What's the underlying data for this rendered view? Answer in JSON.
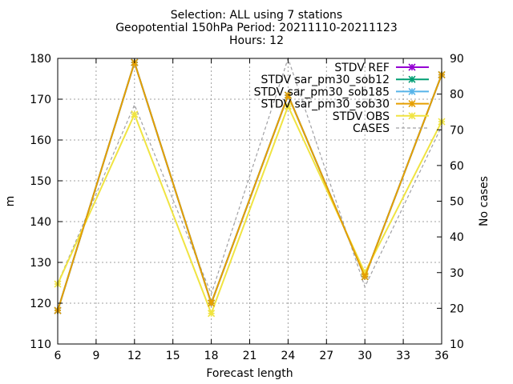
{
  "chart_data": {
    "type": "line",
    "title": [
      "Selection: ALL using     7 stations",
      "Geopotential 150hPa   Period: 20211110-20211123",
      "Hours: 12"
    ],
    "xlabel": "Forecast length",
    "ylabel": "m",
    "y2label": "No cases",
    "x": [
      6,
      12,
      18,
      24,
      30,
      36
    ],
    "xticks": [
      6,
      9,
      12,
      15,
      18,
      21,
      24,
      27,
      30,
      33,
      36
    ],
    "xlim": [
      6,
      36
    ],
    "ylim": [
      110,
      180
    ],
    "yticks": [
      110,
      120,
      130,
      140,
      150,
      160,
      170,
      180
    ],
    "y2lim": [
      10,
      90
    ],
    "y2ticks": [
      10,
      20,
      30,
      40,
      50,
      60,
      70,
      80,
      90
    ],
    "grid": true,
    "legend_position": "top-right",
    "series": [
      {
        "name": "STDV REF",
        "axis": "y1",
        "color": "#9400d3",
        "marker": "x",
        "values": [
          118.2,
          179.0,
          120.0,
          171.0,
          126.5,
          176.0
        ]
      },
      {
        "name": "STDV sar_pm30_sob12",
        "axis": "y1",
        "color": "#009e73",
        "marker": "x",
        "values": [
          118.2,
          179.0,
          120.0,
          171.0,
          126.5,
          176.0
        ]
      },
      {
        "name": "STDV sar_pm30_sob185",
        "axis": "y1",
        "color": "#56b4e9",
        "marker": "x",
        "values": [
          118.2,
          179.0,
          120.0,
          171.0,
          126.5,
          176.0
        ]
      },
      {
        "name": "STDV sar_pm30_sob30",
        "axis": "y1",
        "color": "#e69f00",
        "marker": "x",
        "values": [
          118.2,
          179.0,
          120.0,
          171.0,
          126.5,
          176.0
        ]
      },
      {
        "name": "STDV OBS",
        "axis": "y1",
        "color": "#f0e442",
        "marker": "x",
        "values": [
          124.7,
          166.3,
          117.5,
          168.3,
          127.5,
          164.5
        ]
      },
      {
        "name": "CASES",
        "axis": "y2",
        "color": "#a0a0a4",
        "dash": true,
        "values": [
          27,
          77,
          24,
          90,
          26,
          71
        ]
      }
    ]
  }
}
